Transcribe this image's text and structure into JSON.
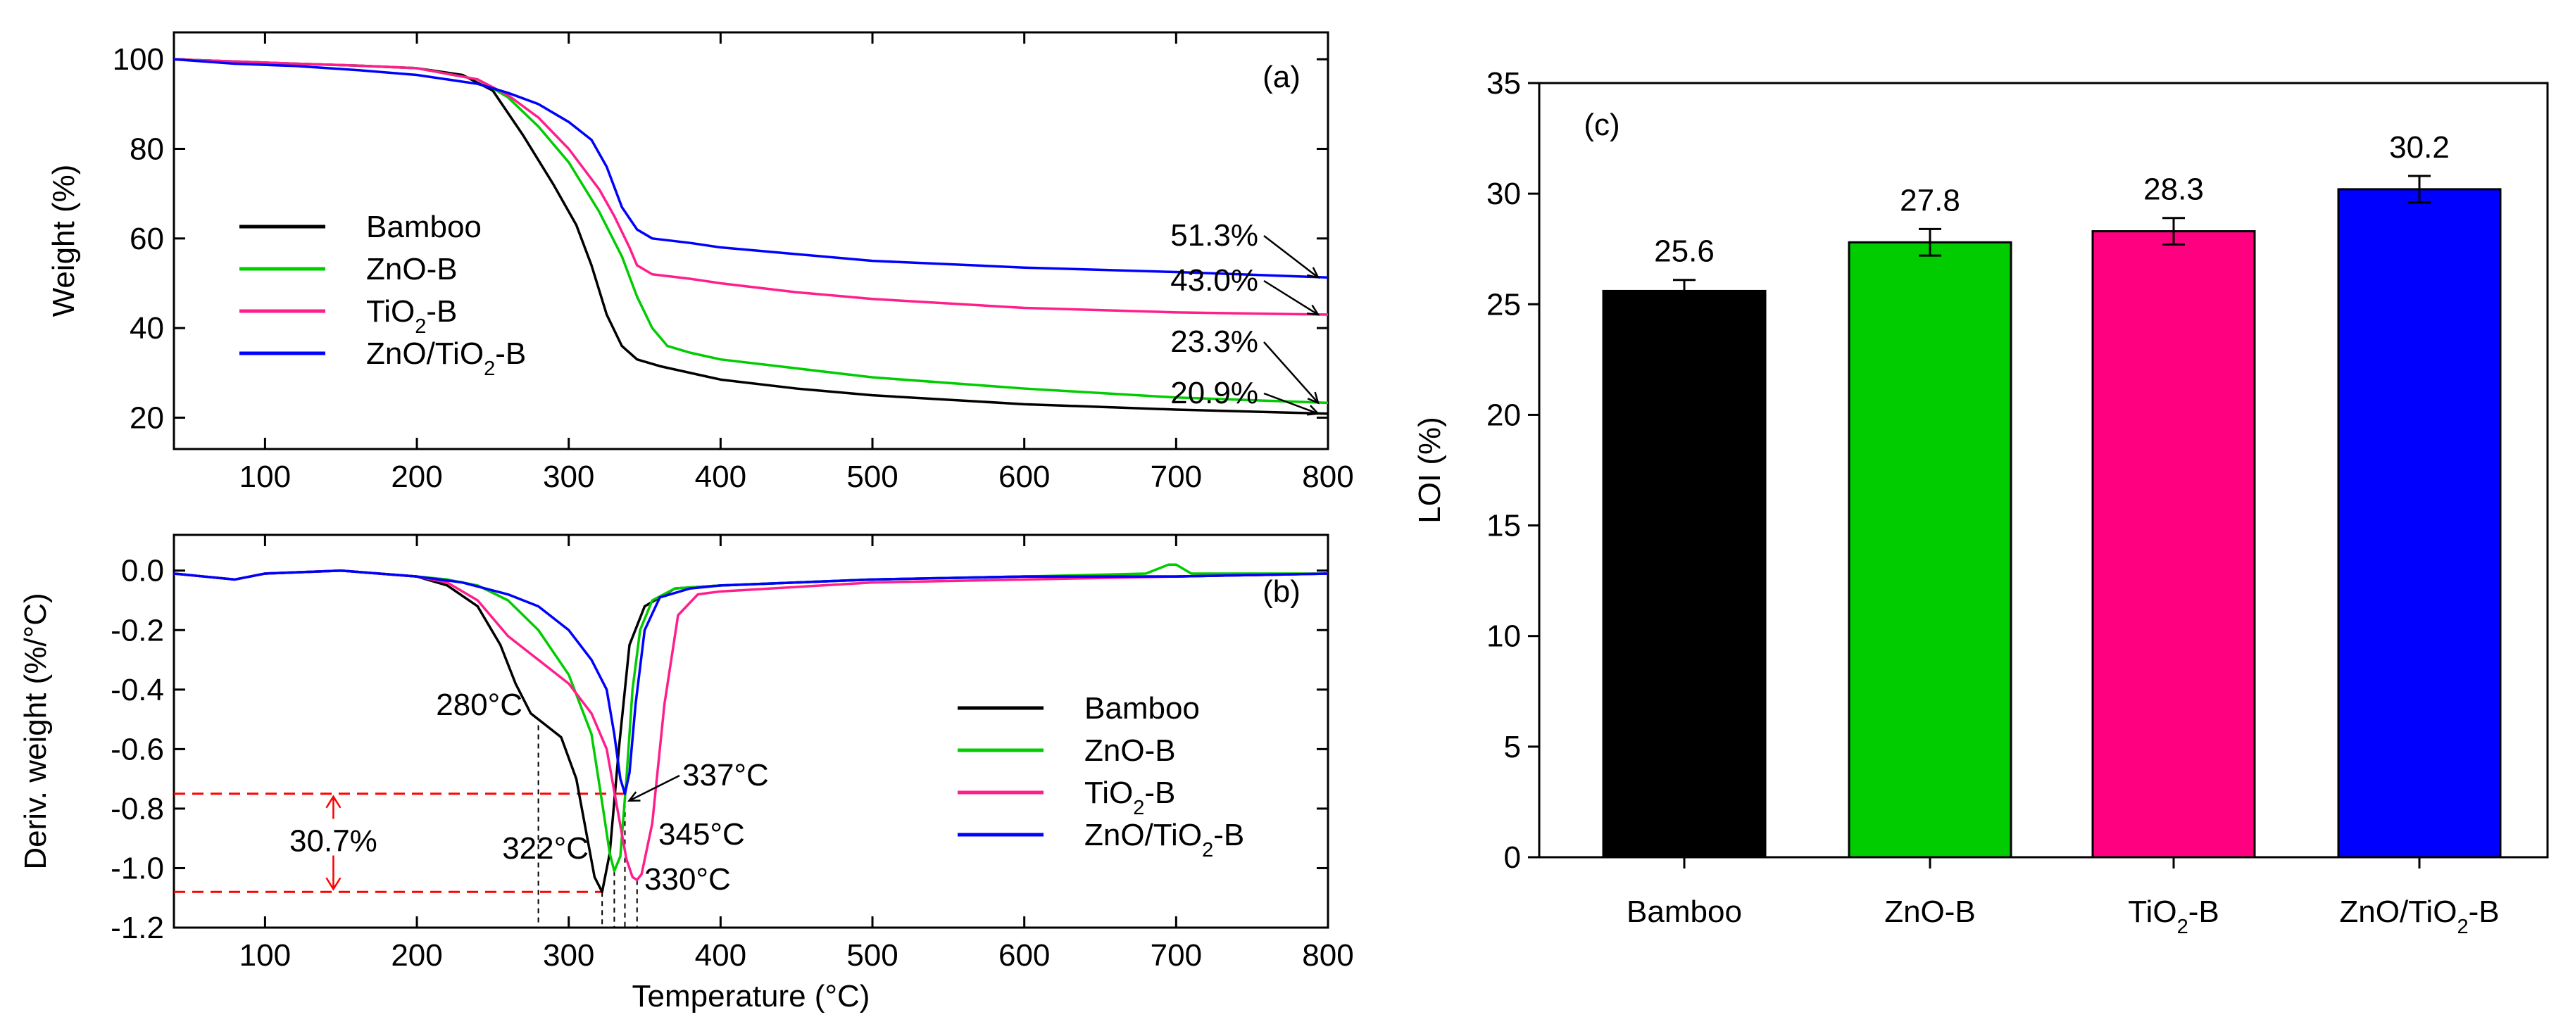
{
  "chart_data": [
    {
      "panel": "(a)",
      "type": "line",
      "xlabel": "",
      "ylabel": "Weight (%)",
      "xlim": [
        40,
        800
      ],
      "ylim": [
        13,
        106
      ],
      "xticks": [
        100,
        200,
        300,
        400,
        500,
        600,
        700,
        800
      ],
      "yticks": [
        20,
        40,
        60,
        80,
        100
      ],
      "legend": [
        "Bamboo",
        "ZnO-B",
        "TiO2-B",
        "ZnO/TiO2-B"
      ],
      "legend_position": "center-left",
      "series": [
        {
          "name": "Bamboo",
          "color": "#000000",
          "x": [
            40,
            80,
            120,
            160,
            200,
            230,
            250,
            270,
            290,
            305,
            315,
            325,
            335,
            345,
            360,
            400,
            450,
            500,
            600,
            700,
            800
          ],
          "y": [
            100,
            99.5,
            99,
            98.6,
            98,
            96.5,
            93,
            83,
            72,
            63,
            54,
            43,
            36,
            33,
            31.5,
            28.5,
            26.5,
            25,
            23,
            21.8,
            20.9
          ]
        },
        {
          "name": "ZnO-B",
          "color": "#00cc00",
          "x": [
            40,
            80,
            120,
            160,
            200,
            240,
            260,
            280,
            300,
            320,
            335,
            345,
            355,
            365,
            380,
            400,
            450,
            500,
            600,
            700,
            800
          ],
          "y": [
            100,
            99.5,
            99,
            98.6,
            98,
            95.5,
            91.5,
            85,
            77,
            66,
            56,
            47,
            40,
            36,
            34.5,
            33,
            31,
            29,
            26.5,
            24.5,
            23.3
          ]
        },
        {
          "name": "TiO2-B",
          "color": "#ff1e8c",
          "x": [
            40,
            80,
            120,
            160,
            200,
            240,
            260,
            280,
            300,
            320,
            330,
            340,
            345,
            355,
            380,
            400,
            450,
            500,
            600,
            700,
            800
          ],
          "y": [
            100,
            99.5,
            99,
            98.6,
            98,
            95.5,
            92,
            87,
            80,
            71,
            65,
            58,
            54,
            52,
            51,
            50,
            48,
            46.5,
            44.5,
            43.5,
            43.0
          ]
        },
        {
          "name": "ZnO/TiO2-B",
          "color": "#0000ff",
          "x": [
            40,
            80,
            120,
            160,
            200,
            240,
            260,
            280,
            300,
            315,
            325,
            335,
            345,
            355,
            380,
            400,
            450,
            500,
            600,
            700,
            800
          ],
          "y": [
            100,
            99,
            98.5,
            97.6,
            96.5,
            94.5,
            92.5,
            90,
            86,
            82,
            76,
            67,
            62,
            60,
            59,
            58,
            56.5,
            55,
            53.5,
            52.5,
            51.3
          ]
        }
      ],
      "annotations": [
        "51.3%",
        "43.0%",
        "23.3%",
        "20.9%"
      ]
    },
    {
      "panel": "(b)",
      "type": "line",
      "xlabel": "Temperature (°C)",
      "ylabel": "Deriv. weight (%/°C)",
      "xlim": [
        40,
        800
      ],
      "ylim": [
        -1.2,
        0.12
      ],
      "xticks": [
        100,
        200,
        300,
        400,
        500,
        600,
        700,
        800
      ],
      "yticks": [
        0.0,
        -0.2,
        -0.4,
        -0.6,
        -0.8,
        -1.0,
        -1.2
      ],
      "legend": [
        "Bamboo",
        "ZnO-B",
        "TiO2-B",
        "ZnO/TiO2-B"
      ],
      "legend_position": "lower-right",
      "series": [
        {
          "name": "Bamboo",
          "color": "#000000",
          "x": [
            40,
            60,
            80,
            100,
            150,
            200,
            220,
            240,
            255,
            265,
            275,
            285,
            295,
            305,
            313,
            317,
            322,
            327,
            333,
            340,
            350,
            370,
            400,
            500,
            600,
            700,
            800
          ],
          "y": [
            -0.01,
            -0.02,
            -0.03,
            -0.01,
            0.0,
            -0.02,
            -0.05,
            -0.12,
            -0.25,
            -0.38,
            -0.48,
            -0.52,
            -0.56,
            -0.7,
            -0.92,
            -1.03,
            -1.08,
            -0.95,
            -0.6,
            -0.25,
            -0.12,
            -0.06,
            -0.05,
            -0.03,
            -0.02,
            -0.02,
            -0.01
          ]
        },
        {
          "name": "ZnO-B",
          "color": "#00cc00",
          "x": [
            40,
            60,
            80,
            100,
            150,
            200,
            220,
            240,
            260,
            280,
            300,
            315,
            322,
            327,
            330,
            334,
            338,
            342,
            347,
            355,
            370,
            400,
            500,
            600,
            680,
            695,
            700,
            710,
            800
          ],
          "y": [
            -0.01,
            -0.02,
            -0.03,
            -0.01,
            0.0,
            -0.02,
            -0.03,
            -0.05,
            -0.1,
            -0.2,
            -0.35,
            -0.55,
            -0.78,
            -0.95,
            -1.01,
            -0.96,
            -0.7,
            -0.4,
            -0.2,
            -0.1,
            -0.06,
            -0.05,
            -0.03,
            -0.02,
            -0.01,
            0.02,
            0.02,
            -0.01,
            -0.01
          ]
        },
        {
          "name": "TiO2-B",
          "color": "#ff1e8c",
          "x": [
            40,
            60,
            80,
            100,
            150,
            200,
            220,
            240,
            260,
            280,
            300,
            315,
            325,
            332,
            338,
            342,
            345,
            348,
            355,
            363,
            372,
            385,
            400,
            500,
            600,
            700,
            800
          ],
          "y": [
            -0.01,
            -0.02,
            -0.03,
            -0.01,
            0.0,
            -0.02,
            -0.04,
            -0.1,
            -0.22,
            -0.3,
            -0.38,
            -0.48,
            -0.6,
            -0.8,
            -0.97,
            -1.03,
            -1.04,
            -1.02,
            -0.85,
            -0.45,
            -0.15,
            -0.08,
            -0.07,
            -0.04,
            -0.03,
            -0.02,
            -0.01
          ]
        },
        {
          "name": "ZnO/TiO2-B",
          "color": "#0000ff",
          "x": [
            40,
            60,
            80,
            100,
            150,
            200,
            230,
            260,
            280,
            300,
            315,
            325,
            330,
            334,
            337,
            340,
            344,
            350,
            360,
            380,
            400,
            500,
            600,
            700,
            800
          ],
          "y": [
            -0.01,
            -0.02,
            -0.03,
            -0.01,
            0.0,
            -0.02,
            -0.04,
            -0.08,
            -0.12,
            -0.2,
            -0.3,
            -0.4,
            -0.55,
            -0.7,
            -0.75,
            -0.68,
            -0.45,
            -0.2,
            -0.09,
            -0.06,
            -0.05,
            -0.03,
            -0.02,
            -0.02,
            -0.01
          ]
        }
      ],
      "annotations": {
        "peaks": [
          "280°C",
          "322°C",
          "330°C",
          "337°C",
          "345°C"
        ],
        "difference_label": "30.7%"
      }
    },
    {
      "panel": "(c)",
      "type": "bar",
      "xlabel": "",
      "ylabel": "LOI (%)",
      "ylim": [
        0,
        35
      ],
      "yticks": [
        0,
        5,
        10,
        15,
        20,
        25,
        30,
        35
      ],
      "categories": [
        "Bamboo",
        "ZnO-B",
        "TiO2-B",
        "ZnO/TiO2-B"
      ],
      "values": [
        25.6,
        27.8,
        28.3,
        30.2
      ],
      "errors": [
        0.5,
        0.6,
        0.6,
        0.6
      ],
      "colors": [
        "#000000",
        "#00cc00",
        "#ff0080",
        "#0000ff"
      ],
      "data_labels": [
        "25.6",
        "27.8",
        "28.3",
        "30.2"
      ]
    }
  ]
}
